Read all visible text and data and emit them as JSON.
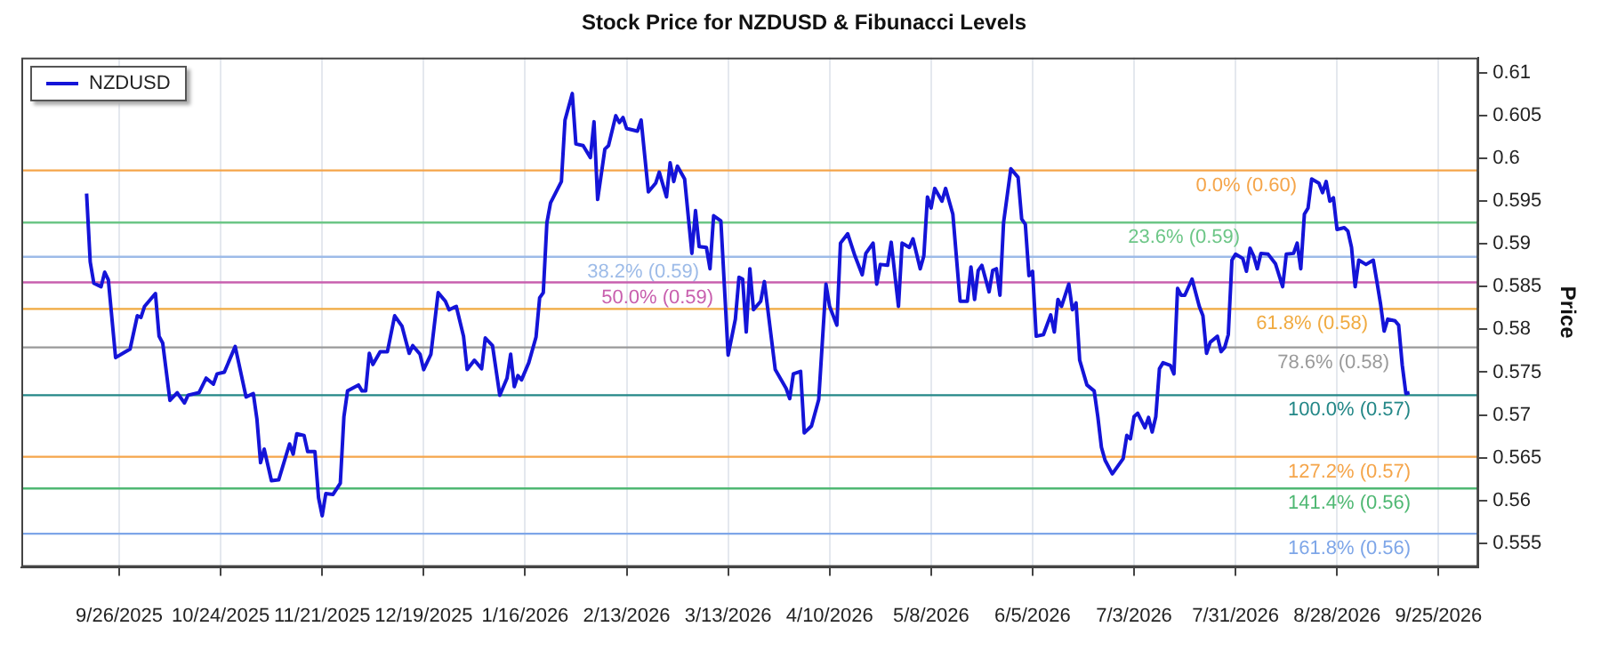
{
  "chart_data": {
    "type": "line",
    "title": "Stock Price for NZDUSD & Fibunacci Levels",
    "ylabel": "Price",
    "x": [
      "2025-09-17",
      "2025-09-18",
      "2025-09-19",
      "2025-09-21",
      "2025-09-22",
      "2025-09-23",
      "2025-09-25",
      "2025-09-27",
      "2025-09-29",
      "2025-10-01",
      "2025-10-02",
      "2025-10-03",
      "2025-10-06",
      "2025-10-07",
      "2025-10-08",
      "2025-10-10",
      "2025-10-12",
      "2025-10-14",
      "2025-10-15",
      "2025-10-18",
      "2025-10-20",
      "2025-10-22",
      "2025-10-23",
      "2025-10-25",
      "2025-10-28",
      "2025-10-31",
      "2025-11-02",
      "2025-11-03",
      "2025-11-04",
      "2025-11-05",
      "2025-11-07",
      "2025-11-09",
      "2025-11-12",
      "2025-11-13",
      "2025-11-14",
      "2025-11-16",
      "2025-11-17",
      "2025-11-19",
      "2025-11-20",
      "2025-11-21",
      "2025-11-22",
      "2025-11-24",
      "2025-11-26",
      "2025-11-27",
      "2025-11-28",
      "2025-12-01",
      "2025-12-02",
      "2025-12-03",
      "2025-12-04",
      "2025-12-05",
      "2025-12-07",
      "2025-12-09",
      "2025-12-11",
      "2025-12-13",
      "2025-12-15",
      "2025-12-16",
      "2025-12-18",
      "2025-12-19",
      "2025-12-21",
      "2025-12-23",
      "2025-12-25",
      "2025-12-26",
      "2025-12-28",
      "2025-12-30",
      "2025-12-31",
      "2026-01-02",
      "2026-01-04",
      "2026-01-05",
      "2026-01-07",
      "2026-01-09",
      "2026-01-11",
      "2026-01-12",
      "2026-01-13",
      "2026-01-14",
      "2026-01-15",
      "2026-01-17",
      "2026-01-19",
      "2026-01-20",
      "2026-01-21",
      "2026-01-22",
      "2026-01-23",
      "2026-01-26",
      "2026-01-27",
      "2026-01-29",
      "2026-01-30",
      "2026-02-01",
      "2026-02-03",
      "2026-02-04",
      "2026-02-05",
      "2026-02-07",
      "2026-02-08",
      "2026-02-10",
      "2026-02-11",
      "2026-02-12",
      "2026-02-13",
      "2026-02-16",
      "2026-02-17",
      "2026-02-19",
      "2026-02-21",
      "2026-02-22",
      "2026-02-24",
      "2026-02-25",
      "2026-02-26",
      "2026-02-27",
      "2026-03-01",
      "2026-03-03",
      "2026-03-04",
      "2026-03-05",
      "2026-03-07",
      "2026-03-08",
      "2026-03-09",
      "2026-03-11",
      "2026-03-13",
      "2026-03-15",
      "2026-03-16",
      "2026-03-17",
      "2026-03-18",
      "2026-03-19",
      "2026-03-20",
      "2026-03-22",
      "2026-03-23",
      "2026-03-26",
      "2026-03-29",
      "2026-03-30",
      "2026-03-31",
      "2026-04-02",
      "2026-04-03",
      "2026-04-05",
      "2026-04-07",
      "2026-04-09",
      "2026-04-10",
      "2026-04-12",
      "2026-04-13",
      "2026-04-15",
      "2026-04-17",
      "2026-04-19",
      "2026-04-20",
      "2026-04-22",
      "2026-04-23",
      "2026-04-24",
      "2026-04-26",
      "2026-04-27",
      "2026-04-29",
      "2026-04-30",
      "2026-05-02",
      "2026-05-03",
      "2026-05-05",
      "2026-05-06",
      "2026-05-07",
      "2026-05-08",
      "2026-05-09",
      "2026-05-11",
      "2026-05-12",
      "2026-05-14",
      "2026-05-16",
      "2026-05-18",
      "2026-05-19",
      "2026-05-20",
      "2026-05-21",
      "2026-05-22",
      "2026-05-24",
      "2026-05-25",
      "2026-05-26",
      "2026-05-27",
      "2026-05-28",
      "2026-05-30",
      "2026-06-01",
      "2026-06-02",
      "2026-06-03",
      "2026-06-04",
      "2026-06-05",
      "2026-06-06",
      "2026-06-08",
      "2026-06-10",
      "2026-06-11",
      "2026-06-12",
      "2026-06-13",
      "2026-06-15",
      "2026-06-16",
      "2026-06-17",
      "2026-06-18",
      "2026-06-20",
      "2026-06-22",
      "2026-06-23",
      "2026-06-24",
      "2026-06-25",
      "2026-06-27",
      "2026-06-30",
      "2026-07-01",
      "2026-07-02",
      "2026-07-03",
      "2026-07-04",
      "2026-07-06",
      "2026-07-07",
      "2026-07-08",
      "2026-07-09",
      "2026-07-10",
      "2026-07-11",
      "2026-07-13",
      "2026-07-14",
      "2026-07-15",
      "2026-07-16",
      "2026-07-17",
      "2026-07-19",
      "2026-07-21",
      "2026-07-22",
      "2026-07-23",
      "2026-07-24",
      "2026-07-26",
      "2026-07-27",
      "2026-07-28",
      "2026-07-29",
      "2026-07-30",
      "2026-07-31",
      "2026-08-02",
      "2026-08-03",
      "2026-08-04",
      "2026-08-05",
      "2026-08-06",
      "2026-08-07",
      "2026-08-09",
      "2026-08-11",
      "2026-08-13",
      "2026-08-14",
      "2026-08-16",
      "2026-08-17",
      "2026-08-18",
      "2026-08-19",
      "2026-08-20",
      "2026-08-21",
      "2026-08-23",
      "2026-08-24",
      "2026-08-25",
      "2026-08-26",
      "2026-08-27",
      "2026-08-28",
      "2026-08-30",
      "2026-08-31",
      "2026-09-01",
      "2026-09-02",
      "2026-09-03",
      "2026-09-05",
      "2026-09-07",
      "2026-09-08",
      "2026-09-09",
      "2026-09-10",
      "2026-09-11",
      "2026-09-13",
      "2026-09-14",
      "2026-09-15",
      "2026-09-16",
      "2026-09-17"
    ],
    "series": [
      {
        "name": "NZDUSD",
        "color": "#1414d8",
        "values": [
          0.5959,
          0.5879,
          0.5854,
          0.585,
          0.5867,
          0.5858,
          0.5767,
          0.5772,
          0.5777,
          0.5816,
          0.5814,
          0.5827,
          0.5842,
          0.5792,
          0.5784,
          0.5717,
          0.5726,
          0.5714,
          0.5723,
          0.5726,
          0.5743,
          0.5736,
          0.5748,
          0.575,
          0.578,
          0.5721,
          0.5725,
          0.5695,
          0.5644,
          0.566,
          0.5623,
          0.5624,
          0.5666,
          0.5654,
          0.5678,
          0.5676,
          0.5657,
          0.5657,
          0.5603,
          0.5582,
          0.5608,
          0.5607,
          0.562,
          0.5698,
          0.5728,
          0.5735,
          0.5728,
          0.5728,
          0.5772,
          0.5759,
          0.5774,
          0.5774,
          0.5816,
          0.5804,
          0.5772,
          0.5781,
          0.5771,
          0.5753,
          0.5771,
          0.5843,
          0.5833,
          0.5823,
          0.5827,
          0.5792,
          0.5753,
          0.5764,
          0.5754,
          0.579,
          0.5781,
          0.5723,
          0.5743,
          0.5771,
          0.5733,
          0.5746,
          0.5741,
          0.5761,
          0.5791,
          0.5837,
          0.5843,
          0.5925,
          0.5948,
          0.5973,
          0.6045,
          0.6076,
          0.6017,
          0.6015,
          0.6001,
          0.6043,
          0.5952,
          0.6011,
          0.6015,
          0.605,
          0.6042,
          0.6048,
          0.6035,
          0.6032,
          0.6045,
          0.5961,
          0.5971,
          0.5984,
          0.5955,
          0.5995,
          0.5973,
          0.5991,
          0.5976,
          0.5889,
          0.5939,
          0.5897,
          0.5896,
          0.5871,
          0.5933,
          0.5927,
          0.577,
          0.5812,
          0.5861,
          0.5859,
          0.5797,
          0.5871,
          0.5823,
          0.5833,
          0.5856,
          0.5753,
          0.5731,
          0.5719,
          0.5748,
          0.5751,
          0.5679,
          0.5687,
          0.5718,
          0.5853,
          0.5827,
          0.5805,
          0.5901,
          0.5912,
          0.5886,
          0.5864,
          0.5889,
          0.5901,
          0.5853,
          0.5876,
          0.5875,
          0.5902,
          0.5827,
          0.5901,
          0.5896,
          0.5906,
          0.5871,
          0.5886,
          0.5955,
          0.5942,
          0.5965,
          0.595,
          0.5965,
          0.5935,
          0.5833,
          0.5833,
          0.5873,
          0.5835,
          0.5869,
          0.5875,
          0.5844,
          0.5869,
          0.5871,
          0.584,
          0.5925,
          0.5988,
          0.5978,
          0.5929,
          0.5923,
          0.5863,
          0.5868,
          0.5792,
          0.5794,
          0.5817,
          0.5797,
          0.5835,
          0.5827,
          0.5853,
          0.5823,
          0.5831,
          0.5764,
          0.5735,
          0.5728,
          0.5698,
          0.5662,
          0.5647,
          0.5631,
          0.5649,
          0.5676,
          0.5672,
          0.5698,
          0.5702,
          0.5685,
          0.5697,
          0.568,
          0.5698,
          0.5754,
          0.5761,
          0.5758,
          0.5748,
          0.5848,
          0.584,
          0.584,
          0.5859,
          0.5827,
          0.5816,
          0.5772,
          0.5785,
          0.5792,
          0.5774,
          0.5779,
          0.5794,
          0.5881,
          0.5888,
          0.5883,
          0.5868,
          0.5895,
          0.5886,
          0.5871,
          0.5889,
          0.5888,
          0.5877,
          0.585,
          0.5888,
          0.5889,
          0.5901,
          0.5871,
          0.5935,
          0.5942,
          0.5976,
          0.5971,
          0.596,
          0.5973,
          0.595,
          0.5954,
          0.5917,
          0.5919,
          0.5915,
          0.5896,
          0.585,
          0.5881,
          0.5876,
          0.5881,
          0.5856,
          0.583,
          0.5798,
          0.5812,
          0.581,
          0.5805,
          0.5758,
          0.5725,
          0.5726
        ]
      }
    ],
    "xlim": [
      "2025-08-30",
      "2026-10-06"
    ],
    "xticks": [
      {
        "value": "2025-09-26",
        "label": "9/26/2025"
      },
      {
        "value": "2025-10-24",
        "label": "10/24/2025"
      },
      {
        "value": "2025-11-21",
        "label": "11/21/2025"
      },
      {
        "value": "2025-12-19",
        "label": "12/19/2025"
      },
      {
        "value": "2026-01-16",
        "label": "1/16/2026"
      },
      {
        "value": "2026-02-13",
        "label": "2/13/2026"
      },
      {
        "value": "2026-03-13",
        "label": "3/13/2026"
      },
      {
        "value": "2026-04-10",
        "label": "4/10/2026"
      },
      {
        "value": "2026-05-08",
        "label": "5/8/2026"
      },
      {
        "value": "2026-06-05",
        "label": "6/5/2026"
      },
      {
        "value": "2026-07-03",
        "label": "7/3/2026"
      },
      {
        "value": "2026-07-31",
        "label": "7/31/2026"
      },
      {
        "value": "2026-08-28",
        "label": "8/28/2026"
      },
      {
        "value": "2026-09-25",
        "label": "9/25/2026"
      }
    ],
    "ylim": [
      0.5522,
      0.6118
    ],
    "yticks": [
      0.555,
      0.56,
      0.565,
      0.57,
      0.575,
      0.58,
      0.585,
      0.59,
      0.595,
      0.6,
      0.605,
      0.61
    ],
    "ref_lines": [
      {
        "axis": "y",
        "value": 0.5986,
        "label": "0.0% (0.60)",
        "color": "#f5a54a"
      },
      {
        "axis": "y",
        "value": 0.5925,
        "label": "23.6% (0.59)",
        "color": "#6cc686"
      },
      {
        "axis": "y",
        "value": 0.5885,
        "label": "38.2% (0.59)",
        "color": "#9dbbe8"
      },
      {
        "axis": "y",
        "value": 0.5855,
        "label": "50.0% (0.59)",
        "color": "#c85fae"
      },
      {
        "axis": "y",
        "value": 0.5824,
        "label": "61.8% (0.58)",
        "color": "#f0aa40"
      },
      {
        "axis": "y",
        "value": 0.5779,
        "label": "78.6% (0.58)",
        "color": "#9a9a9a"
      },
      {
        "axis": "y",
        "value": 0.5723,
        "label": "100.0% (0.57)",
        "color": "#238787"
      },
      {
        "axis": "y",
        "value": 0.5651,
        "label": "127.2% (0.57)",
        "color": "#f5a54a"
      },
      {
        "axis": "y",
        "value": 0.5614,
        "label": "141.4% (0.56)",
        "color": "#4fb873"
      },
      {
        "axis": "y",
        "value": 0.5561,
        "label": "161.8% (0.56)",
        "color": "#7ea6e8"
      }
    ],
    "grid": "x",
    "legend": "top left",
    "marker": "none",
    "line_style": "solid"
  }
}
